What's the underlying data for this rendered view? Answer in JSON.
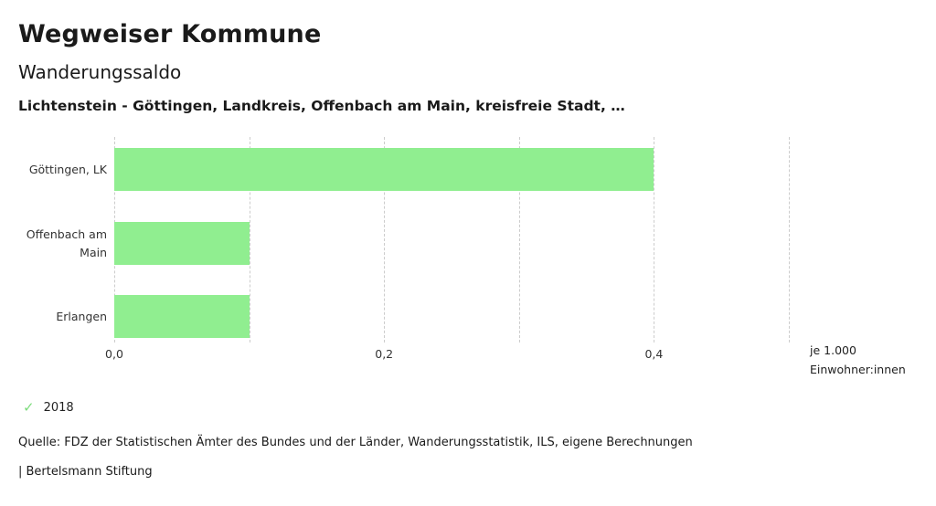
{
  "header": {
    "title": "Wegweiser Kommune",
    "subtitle": "Wanderungssaldo",
    "description": "Lichtenstein - Göttingen, Landkreis, Offenbach am Main, kreisfreie Stadt, …"
  },
  "chart_data": {
    "type": "bar",
    "orientation": "horizontal",
    "title": "Wanderungssaldo",
    "categories": [
      "Göttingen, LK",
      "Offenbach am Main",
      "Erlangen"
    ],
    "values": [
      0.4,
      0.1,
      0.1
    ],
    "series_name": "2018",
    "xlabel": "je 1.000 Einwohner:innen",
    "ylabel": "",
    "xlim": [
      0,
      0.5
    ],
    "x_tick_values": [
      0,
      0.2,
      0.4
    ],
    "x_tick_labels": [
      "0,0",
      "0,2",
      "0,4"
    ],
    "gridline_values": [
      0,
      0.1,
      0.2,
      0.3,
      0.4,
      0.5
    ],
    "grid": true,
    "legend_position": "bottom-left",
    "bar_color": "#90EE90",
    "gridline_color": "#cccccc"
  },
  "unit": {
    "line1": "je 1.000",
    "line2": "Einwohner:innen"
  },
  "legend": {
    "check_icon": "✓",
    "year": "2018",
    "check_color": "#7ddc7d"
  },
  "footer": {
    "source": "Quelle: FDZ der Statistischen Ämter des Bundes und der Länder, Wanderungsstatistik, ILS, eigene Berechnungen",
    "attribution": "| Bertelsmann Stiftung"
  }
}
